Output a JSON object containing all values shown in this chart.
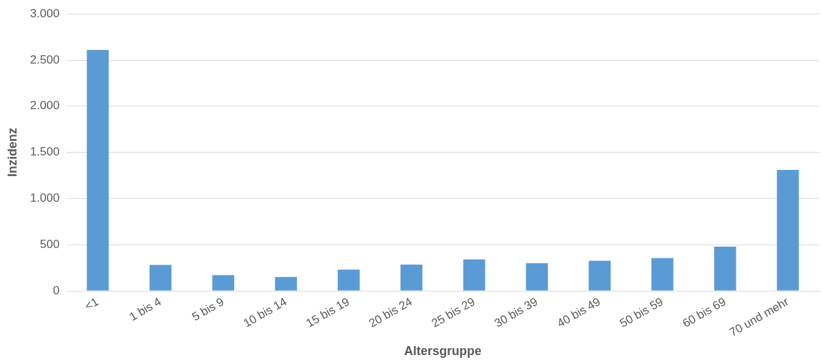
{
  "chart_data": {
    "type": "bar",
    "xlabel": "Altersgruppe",
    "ylabel": "Inzidenz",
    "categories": [
      "<1",
      "1 bis 4",
      "5 bis 9",
      "10 bis 14",
      "15 bis 19",
      "20 bis 24",
      "25 bis 29",
      "30 bis 39",
      "40 bis 49",
      "50 bis 59",
      "60 bis 69",
      "70 und mehr"
    ],
    "values": [
      2610,
      280,
      170,
      150,
      230,
      285,
      340,
      300,
      325,
      355,
      480,
      1310
    ],
    "color": "#5b9bd5",
    "ylim": [
      0,
      3000
    ],
    "yticks": [
      {
        "value": 0,
        "label": "0"
      },
      {
        "value": 500,
        "label": "500"
      },
      {
        "value": 1000,
        "label": "1.000"
      },
      {
        "value": 1500,
        "label": "1.500"
      },
      {
        "value": 2000,
        "label": "2.000"
      },
      {
        "value": 2500,
        "label": "2.500"
      },
      {
        "value": 3000,
        "label": "3.000"
      }
    ],
    "grid": "y",
    "legend": false
  }
}
